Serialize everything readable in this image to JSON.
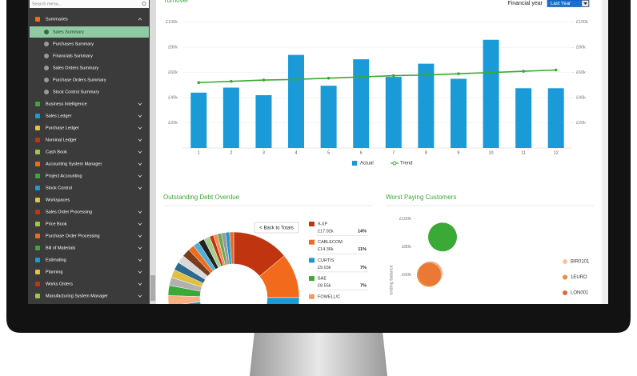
{
  "sidebar": {
    "search_placeholder": "Search menu...",
    "items": [
      {
        "label": "Summaries",
        "children": [
          "Sales Summary",
          "Purchases Summary",
          "Financials Summary",
          "Sales Orders Summary",
          "Purchase Orders Summary",
          "Stock Control Summary"
        ]
      },
      {
        "label": "Business Intelligence"
      },
      {
        "label": "Sales Ledger"
      },
      {
        "label": "Purchase Ledger"
      },
      {
        "label": "Nominal Ledger"
      },
      {
        "label": "Cash Book"
      },
      {
        "label": "Accounting System Manager"
      },
      {
        "label": "Project Accounting"
      },
      {
        "label": "Stock Control"
      },
      {
        "label": "Workspaces"
      },
      {
        "label": "Sales Order Processing"
      },
      {
        "label": "Price Book"
      },
      {
        "label": "Purchase Order Processing"
      },
      {
        "label": "Bill of Materials"
      },
      {
        "label": "Estimating"
      },
      {
        "label": "Planning"
      },
      {
        "label": "Works Orders"
      },
      {
        "label": "Manufacturing System Manager"
      }
    ]
  },
  "filters": {
    "label": "Financial year",
    "value": "Last Year"
  },
  "chart_data": [
    {
      "type": "bar",
      "title": "Turnover",
      "categories": [
        "1",
        "2",
        "3",
        "4",
        "5",
        "6",
        "7",
        "8",
        "9",
        "10",
        "11",
        "12"
      ],
      "series": [
        {
          "name": "Actual",
          "color": "#1a9ad6",
          "values": [
            44000,
            48000,
            42000,
            74000,
            49500,
            70500,
            56500,
            67000,
            55000,
            86000,
            47500,
            47500
          ]
        },
        {
          "name": "Trend",
          "type": "line",
          "color": "#3aa935",
          "values": [
            52000,
            53000,
            54000,
            54500,
            55500,
            56500,
            57500,
            58000,
            59000,
            60000,
            61000,
            62000
          ]
        }
      ],
      "ylim": [
        0,
        110000
      ],
      "yticks": [
        {
          "value": 20000,
          "label": "£20k"
        },
        {
          "value": 40000,
          "label": "£40k"
        },
        {
          "value": 60000,
          "label": "£60k"
        },
        {
          "value": 80000,
          "label": "£80k"
        },
        {
          "value": 100000,
          "label": "£100k"
        }
      ],
      "y2lim": [
        0,
        110000
      ],
      "y2ticks": [
        {
          "value": 20000,
          "label": "£20k"
        },
        {
          "value": 40000,
          "label": "£40k"
        },
        {
          "value": 60000,
          "label": "£60k"
        },
        {
          "value": 80000,
          "label": "£80k"
        },
        {
          "value": 100000,
          "label": "£100k"
        }
      ],
      "grid": true
    },
    {
      "type": "pie",
      "title": "Outstanding Debt Overdue",
      "button": "< Back to Totals",
      "donut": true,
      "categories": [
        "9-XP",
        "CABLECOM",
        "CURTIS",
        "BAE",
        "FOWELL/C",
        null,
        null,
        null,
        null,
        null,
        null,
        null,
        null,
        null,
        null,
        null,
        null,
        null,
        null,
        null,
        null,
        null,
        null,
        null,
        null,
        null,
        null,
        null,
        null,
        null
      ],
      "values": [
        14,
        11,
        7,
        7,
        6,
        5,
        4,
        4,
        3.5,
        3,
        3,
        3,
        2.5,
        2.5,
        2.5,
        2,
        2,
        2,
        2,
        2,
        1.5,
        1.5,
        1.5,
        1.5,
        1,
        1,
        1,
        1,
        1,
        1
      ],
      "value_labels": [
        "14%",
        "11%",
        "7%",
        "7%",
        null,
        null,
        null,
        null,
        null,
        null,
        null,
        null,
        null,
        null,
        null,
        null,
        null,
        null,
        null,
        null,
        null,
        null,
        null,
        null,
        null,
        null,
        null,
        null,
        null,
        null
      ],
      "amount_labels": [
        "£17.92k",
        "£14.36k",
        "£9.03k",
        "£8.55k",
        null,
        null,
        null,
        null,
        null,
        null,
        null,
        null,
        null,
        null,
        null,
        null,
        null,
        null,
        null,
        null,
        null,
        null,
        null,
        null,
        null,
        null,
        null,
        null,
        null,
        null
      ],
      "colors": [
        "#c0340f",
        "#f26b1d",
        "#1a9ad6",
        "#3aa935",
        "#f59a5a",
        "#8a8a8a",
        "#111111",
        "#c0340f",
        "#f26b1d",
        "#7fc6e8",
        "#9ccb3b",
        "#555555",
        "#1a9ad6",
        "#f5b183",
        "#3aa935",
        "#b0b0b0",
        "#e0c040",
        "#2d6a8f",
        "#d9d9d9",
        "#7a3e1d",
        "#f26b1d",
        "#4fb0d8",
        "#222222",
        "#a8d08d",
        "#c0340f",
        "#ef8f55",
        "#6aa84f",
        "#999999",
        "#1a9ad6",
        "#e46b2e"
      ]
    },
    {
      "type": "scatter",
      "title": "Worst Paying Customers",
      "ylabel": "ending balance",
      "series": [
        {
          "name": null,
          "color": "#3aa935",
          "values": [
            87000
          ]
        },
        {
          "name": "BIR0101",
          "color": "#f9c39a",
          "values": []
        },
        {
          "name": "1EURO",
          "color": "#f08a3c",
          "values": [
            60000
          ]
        },
        {
          "name": "LON001",
          "color": "#e46b2e",
          "values": [
            61000
          ]
        }
      ],
      "ylim": [
        40000,
        107000
      ],
      "yticks": [
        {
          "value": 60000,
          "label": "£60k"
        },
        {
          "value": 80000,
          "label": "£80k"
        },
        {
          "value": 100000,
          "label": "£100k"
        }
      ]
    }
  ]
}
